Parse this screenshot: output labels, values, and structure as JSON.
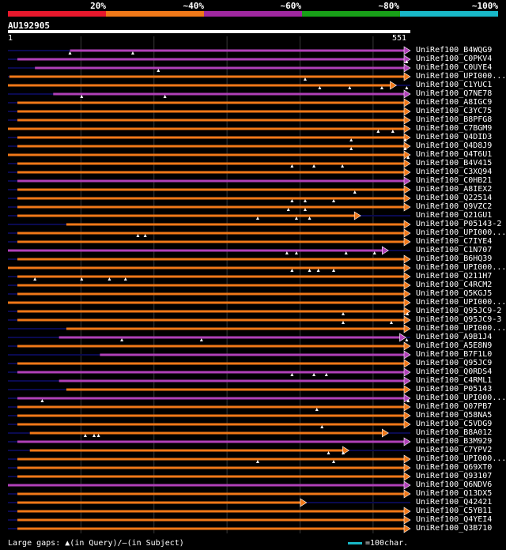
{
  "legend": {
    "segments": [
      {
        "label": "20%",
        "color": "#e8182c"
      },
      {
        "label": "~40%",
        "color": "#f07818"
      },
      {
        "label": "~60%",
        "color": "#a028a0"
      },
      {
        "label": "~80%",
        "color": "#18a018"
      },
      {
        "label": "~100%",
        "color": "#18b8c8"
      }
    ]
  },
  "query": {
    "id": "AU192905",
    "start": "1",
    "end": "551",
    "length": 551
  },
  "colors": {
    "orange": "#f07818",
    "purple": "#b040b8",
    "navy": "#0a0a50",
    "gridline": "#383838"
  },
  "hits": [
    {
      "label": "UniRef100_B4WQG9",
      "start": 85,
      "end": 551,
      "color": "purple",
      "gaps": [
        85,
        171
      ]
    },
    {
      "label": "UniRef100_C0PKV4",
      "start": 13,
      "end": 551,
      "color": "purple",
      "gaps": [
        546,
        564,
        573
      ]
    },
    {
      "label": "UniRef100_C0UYE4",
      "start": 37,
      "end": 591,
      "color": "purple",
      "gaps": [
        206
      ]
    },
    {
      "label": "UniRef100_UPI000...",
      "start": 2,
      "end": 583,
      "color": "orange",
      "gaps": [
        407,
        571
      ]
    },
    {
      "label": "UniRef100_C1YUC1",
      "start": 0,
      "end": 532,
      "color": "orange",
      "gaps": [
        427,
        468,
        512,
        546
      ]
    },
    {
      "label": "UniRef100_Q7NE78",
      "start": 62,
      "end": 595,
      "color": "purple",
      "gaps": [
        101,
        215,
        566
      ]
    },
    {
      "label": "UniRef100_A8IGC9",
      "start": 13,
      "end": 551,
      "color": "orange",
      "gaps": []
    },
    {
      "label": "UniRef100_C3YC75",
      "start": 13,
      "end": 551,
      "color": "orange",
      "gaps": []
    },
    {
      "label": "UniRef100_B8PFG8",
      "start": 13,
      "end": 564,
      "color": "orange",
      "gaps": []
    },
    {
      "label": "UniRef100_C7BGM9",
      "start": 0,
      "end": 564,
      "color": "orange",
      "gaps": [
        507,
        527,
        554
      ]
    },
    {
      "label": "UniRef100_Q4DID3",
      "start": 13,
      "end": 564,
      "color": "orange",
      "gaps": [
        470,
        544,
        558
      ]
    },
    {
      "label": "UniRef100_Q4D8J9",
      "start": 13,
      "end": 564,
      "color": "orange",
      "gaps": [
        470,
        544
      ]
    },
    {
      "label": "UniRef100_Q4T6U1",
      "start": 0,
      "end": 551,
      "color": "orange",
      "gaps": [
        548
      ]
    },
    {
      "label": "UniRef100_B4V415",
      "start": 13,
      "end": 551,
      "color": "orange",
      "gaps": [
        389,
        419,
        458
      ]
    },
    {
      "label": "UniRef100_C3XQ94",
      "start": 13,
      "end": 551,
      "color": "orange",
      "gaps": []
    },
    {
      "label": "UniRef100_C0HB21",
      "start": 13,
      "end": 591,
      "color": "purple",
      "gaps": []
    },
    {
      "label": "UniRef100_A8IEX2",
      "start": 13,
      "end": 557,
      "color": "orange",
      "gaps": [
        475
      ]
    },
    {
      "label": "UniRef100_Q22514",
      "start": 13,
      "end": 557,
      "color": "orange",
      "gaps": [
        389,
        407,
        446
      ]
    },
    {
      "label": "UniRef100_Q9VZC2",
      "start": 13,
      "end": 564,
      "color": "orange",
      "gaps": [
        384,
        407
      ]
    },
    {
      "label": "UniRef100_Q21GU1",
      "start": 13,
      "end": 483,
      "color": "orange",
      "gaps": [
        342,
        395,
        413
      ]
    },
    {
      "label": "UniRef100_P05143-2",
      "start": 80,
      "end": 564,
      "color": "orange",
      "gaps": []
    },
    {
      "label": "UniRef100_UPI000...",
      "start": 13,
      "end": 564,
      "color": "orange",
      "gaps": [
        178,
        188
      ]
    },
    {
      "label": "UniRef100_C7IYE4",
      "start": 13,
      "end": 583,
      "color": "orange",
      "gaps": []
    },
    {
      "label": "UniRef100_C1N707",
      "start": 0,
      "end": 521,
      "color": "purple",
      "gaps": [
        382,
        395,
        463,
        502
      ]
    },
    {
      "label": "UniRef100_B6HQ39",
      "start": 13,
      "end": 564,
      "color": "orange",
      "gaps": []
    },
    {
      "label": "UniRef100_UPI000...",
      "start": 0,
      "end": 564,
      "color": "orange",
      "gaps": [
        389,
        413,
        425,
        446
      ]
    },
    {
      "label": "UniRef100_Q211H7",
      "start": 13,
      "end": 577,
      "color": "orange",
      "gaps": [
        37,
        101,
        139,
        161
      ]
    },
    {
      "label": "UniRef100_C4RCM2",
      "start": 13,
      "end": 564,
      "color": "orange",
      "gaps": []
    },
    {
      "label": "UniRef100_Q5KGJ5",
      "start": 13,
      "end": 564,
      "color": "orange",
      "gaps": []
    },
    {
      "label": "UniRef100_UPI000...",
      "start": 0,
      "end": 564,
      "color": "orange",
      "gaps": []
    },
    {
      "label": "UniRef100_Q95JC9-2",
      "start": 13,
      "end": 564,
      "color": "orange",
      "gaps": [
        459,
        547,
        558
      ]
    },
    {
      "label": "UniRef100_Q95JC9-3",
      "start": 13,
      "end": 564,
      "color": "orange",
      "gaps": [
        459,
        525,
        558
      ]
    },
    {
      "label": "UniRef100_UPI000...",
      "start": 80,
      "end": 551,
      "color": "orange",
      "gaps": []
    },
    {
      "label": "UniRef100_A9B1J4",
      "start": 70,
      "end": 545,
      "color": "purple",
      "gaps": [
        156,
        265,
        546
      ]
    },
    {
      "label": "UniRef100_A5E8N9",
      "start": 13,
      "end": 551,
      "color": "orange",
      "gaps": []
    },
    {
      "label": "UniRef100_B7F1L0",
      "start": 126,
      "end": 591,
      "color": "purple",
      "gaps": []
    },
    {
      "label": "UniRef100_Q95JC9",
      "start": 13,
      "end": 564,
      "color": "orange",
      "gaps": []
    },
    {
      "label": "UniRef100_Q0RDS4",
      "start": 13,
      "end": 557,
      "color": "purple",
      "gaps": [
        389,
        419,
        436
      ]
    },
    {
      "label": "UniRef100_C4RML1",
      "start": 70,
      "end": 564,
      "color": "purple",
      "gaps": []
    },
    {
      "label": "UniRef100_P05143",
      "start": 80,
      "end": 564,
      "color": "orange",
      "gaps": []
    },
    {
      "label": "UniRef100_UPI000...",
      "start": 13,
      "end": 583,
      "color": "purple",
      "gaps": [
        47,
        548
      ]
    },
    {
      "label": "UniRef100_Q07PB7",
      "start": 13,
      "end": 557,
      "color": "orange",
      "gaps": [
        423
      ]
    },
    {
      "label": "UniRef100_Q58NA5",
      "start": 13,
      "end": 583,
      "color": "orange",
      "gaps": []
    },
    {
      "label": "UniRef100_C5VDG9",
      "start": 13,
      "end": 564,
      "color": "orange",
      "gaps": [
        430,
        552
      ]
    },
    {
      "label": "UniRef100_B8A012",
      "start": 30,
      "end": 521,
      "color": "orange",
      "gaps": [
        106,
        118,
        124
      ]
    },
    {
      "label": "UniRef100_B3M929",
      "start": 13,
      "end": 564,
      "color": "purple",
      "gaps": []
    },
    {
      "label": "UniRef100_C7YPV2",
      "start": 30,
      "end": 467,
      "color": "orange",
      "gaps": [
        439,
        459
      ]
    },
    {
      "label": "UniRef100_UPI000...",
      "start": 13,
      "end": 564,
      "color": "orange",
      "gaps": [
        342,
        446
      ]
    },
    {
      "label": "UniRef100_Q69XT0",
      "start": 13,
      "end": 570,
      "color": "orange",
      "gaps": []
    },
    {
      "label": "UniRef100_Q93107",
      "start": 13,
      "end": 564,
      "color": "orange",
      "gaps": []
    },
    {
      "label": "UniRef100_Q6NDV6",
      "start": 0,
      "end": 570,
      "color": "purple",
      "gaps": []
    },
    {
      "label": "UniRef100_Q13DX5",
      "start": 13,
      "end": 564,
      "color": "orange",
      "gaps": []
    },
    {
      "label": "UniRef100_Q42421",
      "start": 13,
      "end": 409,
      "color": "orange",
      "gaps": []
    },
    {
      "label": "UniRef100_C5YB11",
      "start": 13,
      "end": 551,
      "color": "orange",
      "gaps": []
    },
    {
      "label": "UniRef100_Q4YEI4",
      "start": 13,
      "end": 551,
      "color": "orange",
      "gaps": []
    },
    {
      "label": "UniRef100_Q3B710",
      "start": 13,
      "end": 564,
      "color": "orange",
      "gaps": []
    }
  ],
  "footer": {
    "gaps_prefix": "Large gaps:",
    "gaps_triangle": "▲",
    "gaps_middle": "(in Query)/",
    "gaps_dash": "–",
    "gaps_suffix": "(in Subject)",
    "scale_text": "=100char."
  }
}
